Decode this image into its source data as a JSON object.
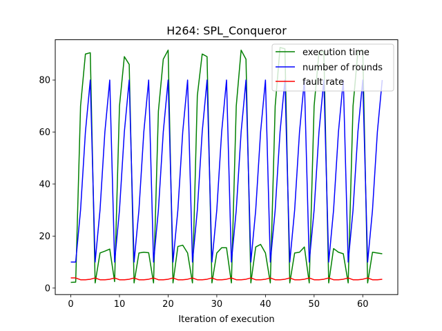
{
  "chart_data": {
    "type": "line",
    "title": "H264: SPL_Conqueror",
    "xlabel": "Iteration of execution",
    "ylabel": "",
    "xlim": [
      -3.2,
      67.2
    ],
    "ylim": [
      -2.5,
      95.5
    ],
    "xticks": [
      0,
      10,
      20,
      30,
      40,
      50,
      60
    ],
    "yticks": [
      0,
      20,
      40,
      60,
      80
    ],
    "grid": false,
    "legend_position": "top-right",
    "x": [
      0,
      1,
      2,
      3,
      4,
      5,
      6,
      7,
      8,
      9,
      10,
      11,
      12,
      13,
      14,
      15,
      16,
      17,
      18,
      19,
      20,
      21,
      22,
      23,
      24,
      25,
      26,
      27,
      28,
      29,
      30,
      31,
      32,
      33,
      34,
      35,
      36,
      37,
      38,
      39,
      40,
      41,
      42,
      43,
      44,
      45,
      46,
      47,
      48,
      49,
      50,
      51,
      52,
      53,
      54,
      55,
      56,
      57,
      58,
      59,
      60,
      61,
      62,
      63,
      64
    ],
    "series": [
      {
        "name": "execution time",
        "color": "#008000",
        "values": [
          2.2,
          2.3,
          70,
          90,
          90.5,
          2,
          13.5,
          14.2,
          15,
          2.5,
          70,
          89,
          86,
          2,
          13.5,
          13.8,
          13.6,
          2,
          68,
          88,
          91.5,
          2,
          16,
          16.5,
          13.5,
          2,
          74,
          90,
          89,
          2,
          13.5,
          15.5,
          15.5,
          2,
          70,
          91.5,
          88,
          2,
          15.8,
          16.8,
          13.5,
          2,
          70,
          92.5,
          92,
          2,
          13.5,
          13.8,
          15.8,
          2,
          70,
          90.5,
          91,
          2,
          15.2,
          13.8,
          13.2,
          2,
          70,
          91,
          91.5,
          2,
          13.8,
          13.5,
          13.2
        ]
      },
      {
        "name": "number of rounds",
        "color": "#0000ff",
        "values": [
          10,
          10,
          30,
          60,
          80,
          10,
          30,
          60,
          80,
          10,
          30,
          60,
          80,
          10,
          30,
          60,
          80,
          10,
          30,
          60,
          80,
          10,
          30,
          60,
          80,
          10,
          30,
          60,
          80,
          10,
          30,
          60,
          80,
          10,
          30,
          60,
          80,
          10,
          30,
          60,
          80,
          10,
          30,
          60,
          80,
          10,
          30,
          60,
          80,
          10,
          30,
          60,
          80,
          10,
          30,
          60,
          80,
          10,
          30,
          60,
          80,
          10,
          30,
          60,
          80
        ]
      },
      {
        "name": "fault rate",
        "color": "#ff0000",
        "values": [
          3.9,
          3.9,
          3.2,
          3.2,
          3.4,
          3.9,
          3.2,
          3.2,
          3.4,
          3.9,
          3.2,
          3.2,
          3.4,
          3.9,
          3.2,
          3.2,
          3.4,
          3.9,
          3.2,
          3.2,
          3.4,
          3.9,
          3.2,
          3.2,
          3.4,
          3.9,
          3.2,
          3.2,
          3.4,
          3.9,
          3.2,
          3.2,
          3.4,
          3.9,
          3.2,
          3.2,
          3.4,
          3.9,
          3.2,
          3.2,
          3.4,
          3.9,
          3.2,
          3.2,
          3.4,
          3.9,
          3.2,
          3.2,
          3.4,
          3.9,
          3.2,
          3.2,
          3.4,
          3.9,
          3.2,
          3.2,
          3.4,
          3.9,
          3.2,
          3.2,
          3.4,
          3.9,
          3.2,
          3.2,
          3.4
        ]
      }
    ]
  }
}
